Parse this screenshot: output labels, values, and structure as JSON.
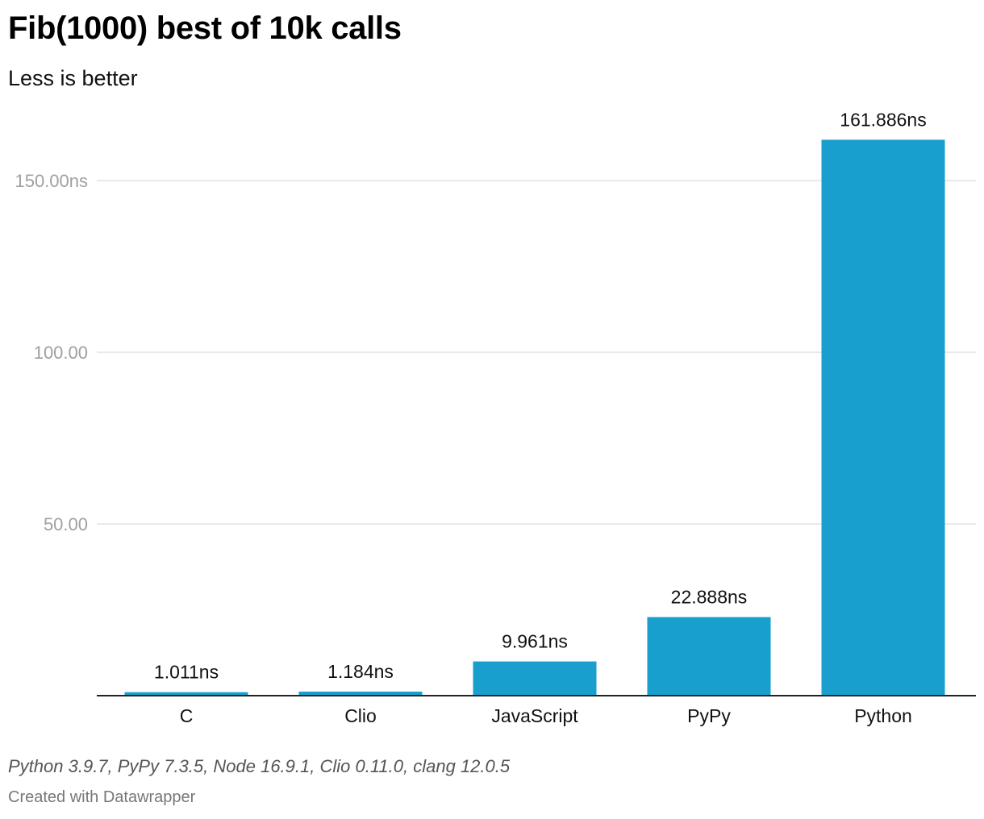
{
  "header": {
    "title": "Fib(1000) best of 10k calls",
    "subtitle": "Less is better"
  },
  "chart_data": {
    "type": "bar",
    "categories": [
      "C",
      "Clio",
      "JavaScript",
      "PyPy",
      "Python"
    ],
    "values": [
      1.011,
      1.184,
      9.961,
      22.888,
      161.886
    ],
    "value_labels": [
      "1.011ns",
      "1.184ns",
      "9.961ns",
      "22.888ns",
      "161.886ns"
    ],
    "yticks": [
      {
        "value": 50,
        "label": "50.00"
      },
      {
        "value": 100,
        "label": "100.00"
      },
      {
        "value": 150,
        "label": "150.00ns"
      }
    ],
    "ylim": [
      0,
      162
    ],
    "grid": true,
    "bar_color": "#199fcd"
  },
  "footer": {
    "notes": "Python 3.9.7, PyPy 7.3.5, Node 16.9.1, Clio 0.11.0, clang 12.0.5",
    "credit": "Created with Datawrapper"
  }
}
